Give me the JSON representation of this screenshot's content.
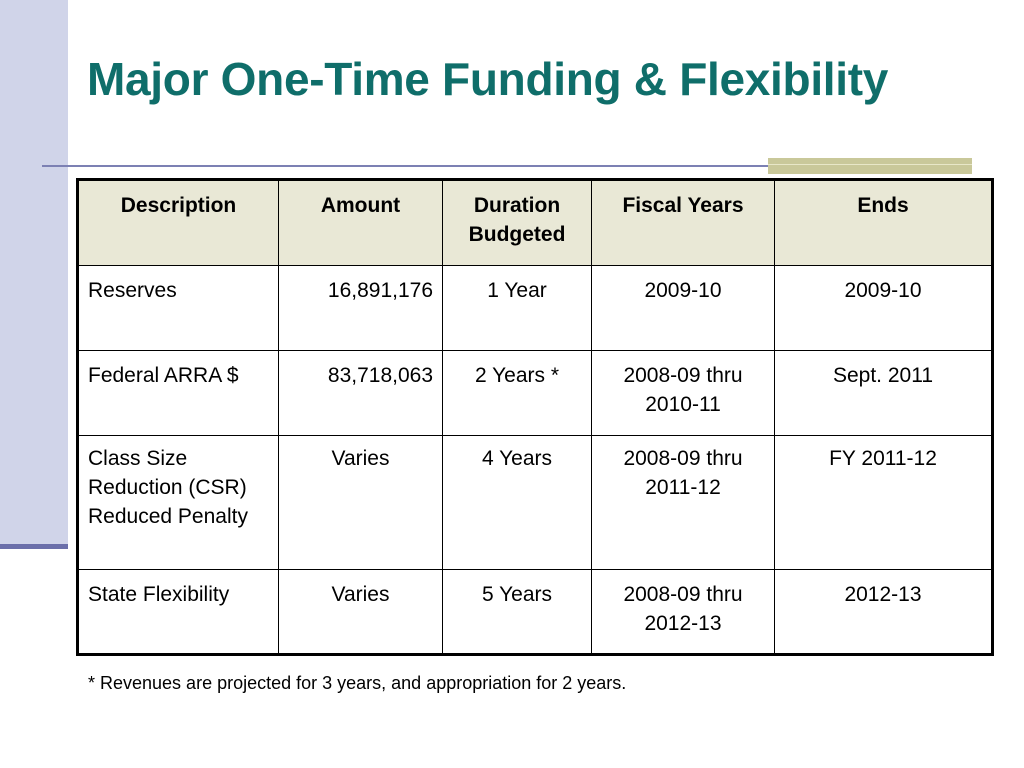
{
  "title": "Major One-Time Funding & Flexibility",
  "table": {
    "headers": [
      "Description",
      "Amount",
      "Duration Budgeted",
      "Fiscal Years",
      "Ends"
    ],
    "rows": [
      {
        "description": "Reserves",
        "amount": "16,891,176",
        "duration": "1 Year",
        "fiscal_years": "2009-10",
        "ends": "2009-10"
      },
      {
        "description": "Federal ARRA $",
        "amount": "83,718,063",
        "duration": "2 Years *",
        "fiscal_years": "2008-09 thru 2010-11",
        "ends": "Sept. 2011"
      },
      {
        "description": "Class Size Reduction (CSR) Reduced Penalty",
        "amount": "Varies",
        "duration": "4 Years",
        "fiscal_years": "2008-09 thru 2011-12",
        "ends": "FY 2011-12"
      },
      {
        "description": "State Flexibility",
        "amount": "Varies",
        "duration": "5 Years",
        "fiscal_years": "2008-09 thru 2012-13",
        "ends": "2012-13"
      }
    ]
  },
  "footnote": "* Revenues are projected for 3 years, and appropriation for 2 years.",
  "colors": {
    "title": "#0f6e6a",
    "left_bar": "#d0d4e9",
    "rule": "#7c80b3",
    "header_bg": "#e9e8d6",
    "olive_accent": "#c9c89a"
  }
}
